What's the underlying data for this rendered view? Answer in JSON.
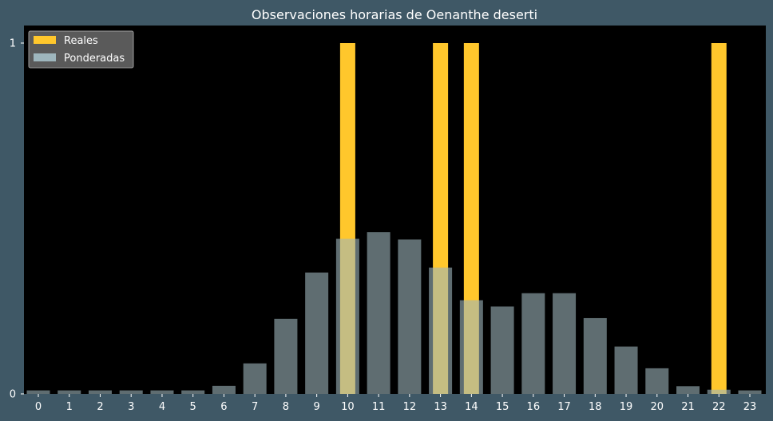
{
  "chart_data": {
    "type": "bar",
    "title": "Observaciones horarias de Oenanthe deserti",
    "xlabel": "",
    "ylabel": "",
    "categories": [
      "0",
      "1",
      "2",
      "3",
      "4",
      "5",
      "6",
      "7",
      "8",
      "9",
      "10",
      "11",
      "12",
      "13",
      "14",
      "15",
      "16",
      "17",
      "18",
      "19",
      "20",
      "21",
      "22",
      "23"
    ],
    "series": [
      {
        "name": "Reales",
        "color": "#ffc72c",
        "values": [
          0,
          0,
          0,
          0,
          0,
          0,
          0,
          0,
          0,
          0,
          1,
          0,
          0,
          1,
          1,
          0,
          0,
          0,
          0,
          0,
          0,
          0,
          1,
          0
        ]
      },
      {
        "name": "Ponderadas",
        "color": "#9eb6bd",
        "values": [
          0.01,
          0.01,
          0.01,
          0.01,
          0.01,
          0.01,
          0.023,
          0.087,
          0.214,
          0.346,
          0.442,
          0.461,
          0.44,
          0.36,
          0.267,
          0.249,
          0.287,
          0.287,
          0.216,
          0.135,
          0.073,
          0.022,
          0.012,
          0.01
        ]
      }
    ],
    "yticks": [
      0,
      1
    ],
    "ylim": [
      0,
      1.05
    ],
    "grid": false,
    "legend": "top-left",
    "background": "#000000",
    "figure_background": "#3f5866"
  }
}
